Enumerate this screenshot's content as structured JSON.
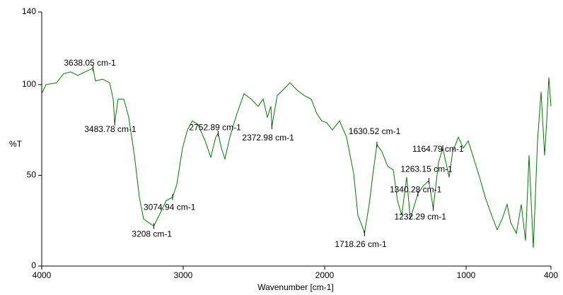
{
  "chart_data": {
    "type": "line",
    "xlabel": "Wavenumber [cm-1]",
    "ylabel": "%T",
    "xlim": [
      4000,
      400
    ],
    "ylim": [
      0,
      140
    ],
    "xticks": [
      4000,
      3000,
      2000,
      1000,
      400
    ],
    "yticks": [
      0,
      50,
      100,
      140
    ],
    "color": "#007a00",
    "x": [
      4000,
      3970,
      3895,
      3845,
      3795,
      3745,
      3695,
      3638.05,
      3620,
      3570,
      3520,
      3495,
      3483.78,
      3460,
      3420,
      3385,
      3345,
      3310,
      3280,
      3245,
      3208,
      3170,
      3120,
      3074.94,
      3045,
      3005,
      2970,
      2935,
      2895,
      2845,
      2805,
      2770,
      2752.89,
      2730,
      2705,
      2670,
      2620,
      2570,
      2520,
      2470,
      2435,
      2405,
      2380,
      2372.98,
      2335,
      2295,
      2245,
      2195,
      2145,
      2095,
      2055,
      2020,
      1985,
      1945,
      1895,
      1845,
      1795,
      1765,
      1735,
      1718.26,
      1685,
      1655,
      1630.52,
      1595,
      1555,
      1515,
      1485,
      1455,
      1420,
      1395,
      1340.28,
      1305,
      1263.15,
      1245,
      1232.29,
      1195,
      1164.79,
      1120,
      1095,
      1055,
      1020,
      985,
      945,
      905,
      865,
      820,
      780,
      745,
      710,
      685,
      645,
      610,
      580,
      555,
      525,
      495,
      470,
      445,
      430,
      415,
      400
    ],
    "values": [
      95,
      100,
      101,
      106,
      107,
      105,
      107,
      109,
      102,
      103,
      101,
      92,
      79,
      92,
      92,
      82,
      61,
      38,
      26,
      24,
      22,
      28,
      36,
      38,
      45,
      65,
      75,
      80,
      78,
      69,
      60,
      71,
      73,
      65,
      59,
      71,
      84,
      95,
      92,
      88,
      92,
      82,
      88,
      77,
      94,
      97,
      101,
      97,
      94,
      92,
      84,
      80,
      79,
      75,
      80,
      71,
      51,
      28,
      22,
      18,
      34,
      53,
      67,
      63,
      55,
      53,
      36,
      28,
      49,
      26,
      40,
      44,
      47,
      38,
      32,
      57,
      65,
      49,
      63,
      71,
      65,
      69,
      59,
      49,
      38,
      28,
      20,
      26,
      34,
      24,
      18,
      34,
      14,
      61,
      10,
      69,
      96,
      61,
      80,
      104,
      88
    ],
    "annotations": [
      {
        "text": "3638.05 cm-1",
        "x": 3638.05,
        "y": 109
      },
      {
        "text": "3483.78 cm-1",
        "x": 3483.78,
        "y": 79
      },
      {
        "text": "3208 cm-1",
        "x": 3208,
        "y": 22
      },
      {
        "text": "3074.94 cm-1",
        "x": 3074.94,
        "y": 38
      },
      {
        "text": "2752.89 cm-1",
        "x": 2752.89,
        "y": 73
      },
      {
        "text": "2372.98 cm-1",
        "x": 2372.98,
        "y": 77
      },
      {
        "text": "1718.26 cm-1",
        "x": 1718.26,
        "y": 18
      },
      {
        "text": "1630.52 cm-1",
        "x": 1630.52,
        "y": 67
      },
      {
        "text": "1164.79 cm-1",
        "x": 1164.79,
        "y": 65
      },
      {
        "text": "1263.15 cm-1",
        "x": 1263.15,
        "y": 47
      },
      {
        "text": "1340.28 cm-1",
        "x": 1340.28,
        "y": 40
      },
      {
        "text": "1232.29 cm-1",
        "x": 1232.29,
        "y": 32
      }
    ]
  }
}
